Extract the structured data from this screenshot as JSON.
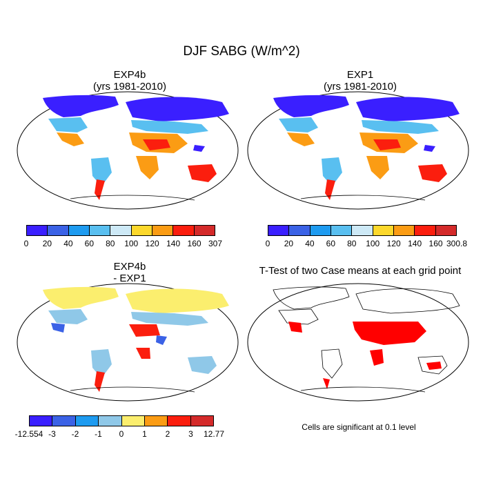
{
  "figure": {
    "title": "DJF SABG (W/m^2)"
  },
  "panels": [
    {
      "id": "exp4b",
      "title_line1": "EXP4b",
      "title_line2": "(yrs 1981-2010)"
    },
    {
      "id": "exp1",
      "title_line1": "EXP1",
      "title_line2": "(yrs 1981-2010)"
    },
    {
      "id": "diff",
      "title_line1": "EXP4b",
      "title_line2": "- EXP1"
    },
    {
      "id": "ttest",
      "title_line1": "T-Test of two Case means at each grid point",
      "title_line2": ""
    }
  ],
  "colorbars": {
    "exp4b": {
      "colors": [
        "#3a1fff",
        "#3b62e6",
        "#1e9bf0",
        "#59bff0",
        "#cde9f6",
        "#fcd82c",
        "#fb9c14",
        "#fb1e0e",
        "#d42a2a"
      ],
      "labels": [
        "0",
        "20",
        "40",
        "60",
        "80",
        "100",
        "120",
        "140",
        "160",
        "307"
      ]
    },
    "exp1": {
      "colors": [
        "#3a1fff",
        "#3b62e6",
        "#1e9bf0",
        "#59bff0",
        "#cde9f6",
        "#fcd82c",
        "#fb9c14",
        "#fb1e0e",
        "#d42a2a"
      ],
      "labels": [
        "0",
        "20",
        "40",
        "60",
        "80",
        "100",
        "120",
        "140",
        "160",
        "300.8"
      ]
    },
    "diff": {
      "colors": [
        "#3a1fff",
        "#3b62e6",
        "#1e9bf0",
        "#8fc8e8",
        "#fbee6e",
        "#fb9c14",
        "#fb1e0e",
        "#d42a2a"
      ],
      "labels": [
        "-12.554",
        "-3",
        "-2",
        "-1",
        "0",
        "1",
        "2",
        "3",
        "12.77"
      ]
    }
  },
  "significance_note": "Cells are significant at 0.1 level",
  "colors": {
    "significant": "#ff0000",
    "land_outline": "#000000"
  }
}
